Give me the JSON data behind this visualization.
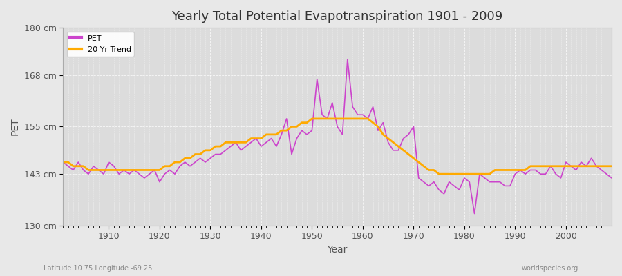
{
  "title": "Yearly Total Potential Evapotranspiration 1901 - 2009",
  "xlabel": "Year",
  "ylabel": "PET",
  "subtitle_left": "Latitude 10.75 Longitude -69.25",
  "subtitle_right": "worldspecies.org",
  "pet_color": "#cc44cc",
  "trend_color": "#ffaa00",
  "bg_color": "#e8e8e8",
  "plot_bg_color": "#dcdcdc",
  "grid_color": "#ffffff",
  "ylim": [
    130,
    180
  ],
  "yticks": [
    130,
    143,
    155,
    168,
    180
  ],
  "ytick_labels": [
    "130 cm",
    "143 cm",
    "155 cm",
    "168 cm",
    "180 cm"
  ],
  "years": [
    1901,
    1902,
    1903,
    1904,
    1905,
    1906,
    1907,
    1908,
    1909,
    1910,
    1911,
    1912,
    1913,
    1914,
    1915,
    1916,
    1917,
    1918,
    1919,
    1920,
    1921,
    1922,
    1923,
    1924,
    1925,
    1926,
    1927,
    1928,
    1929,
    1930,
    1931,
    1932,
    1933,
    1934,
    1935,
    1936,
    1937,
    1938,
    1939,
    1940,
    1941,
    1942,
    1943,
    1944,
    1945,
    1946,
    1947,
    1948,
    1949,
    1950,
    1951,
    1952,
    1953,
    1954,
    1955,
    1956,
    1957,
    1958,
    1959,
    1960,
    1961,
    1962,
    1963,
    1964,
    1965,
    1966,
    1967,
    1968,
    1969,
    1970,
    1971,
    1972,
    1973,
    1974,
    1975,
    1976,
    1977,
    1978,
    1979,
    1980,
    1981,
    1982,
    1983,
    1984,
    1985,
    1986,
    1987,
    1988,
    1989,
    1990,
    1991,
    1992,
    1993,
    1994,
    1995,
    1996,
    1997,
    1998,
    1999,
    2000,
    2001,
    2002,
    2003,
    2004,
    2005,
    2006,
    2007,
    2008,
    2009
  ],
  "pet_values": [
    146,
    145,
    144,
    146,
    144,
    143,
    145,
    144,
    143,
    146,
    145,
    143,
    144,
    143,
    144,
    143,
    142,
    143,
    144,
    141,
    143,
    144,
    143,
    145,
    146,
    145,
    146,
    147,
    146,
    147,
    148,
    148,
    149,
    150,
    151,
    149,
    150,
    151,
    152,
    150,
    151,
    152,
    150,
    153,
    157,
    148,
    152,
    154,
    153,
    154,
    167,
    158,
    157,
    161,
    155,
    153,
    172,
    160,
    158,
    158,
    157,
    160,
    154,
    156,
    151,
    149,
    149,
    152,
    153,
    155,
    142,
    141,
    140,
    141,
    139,
    138,
    141,
    140,
    139,
    142,
    141,
    133,
    143,
    142,
    141,
    141,
    141,
    140,
    140,
    143,
    144,
    143,
    144,
    144,
    143,
    143,
    145,
    143,
    142,
    146,
    145,
    144,
    146,
    145,
    147,
    145,
    144,
    143,
    142
  ],
  "trend_values": [
    146,
    146,
    145,
    145,
    145,
    144,
    144,
    144,
    144,
    144,
    144,
    144,
    144,
    144,
    144,
    144,
    144,
    144,
    144,
    144,
    145,
    145,
    146,
    146,
    147,
    147,
    148,
    148,
    149,
    149,
    150,
    150,
    151,
    151,
    151,
    151,
    151,
    152,
    152,
    152,
    153,
    153,
    153,
    154,
    154,
    155,
    155,
    156,
    156,
    157,
    157,
    157,
    157,
    157,
    157,
    157,
    157,
    157,
    157,
    157,
    157,
    156,
    155,
    153,
    152,
    151,
    150,
    149,
    148,
    147,
    146,
    145,
    144,
    144,
    143,
    143,
    143,
    143,
    143,
    143,
    143,
    143,
    143,
    143,
    143,
    144,
    144,
    144,
    144,
    144,
    144,
    144,
    145,
    145,
    145,
    145,
    145,
    145,
    145,
    145,
    145,
    145,
    145,
    145,
    145,
    145,
    145,
    145,
    145
  ]
}
